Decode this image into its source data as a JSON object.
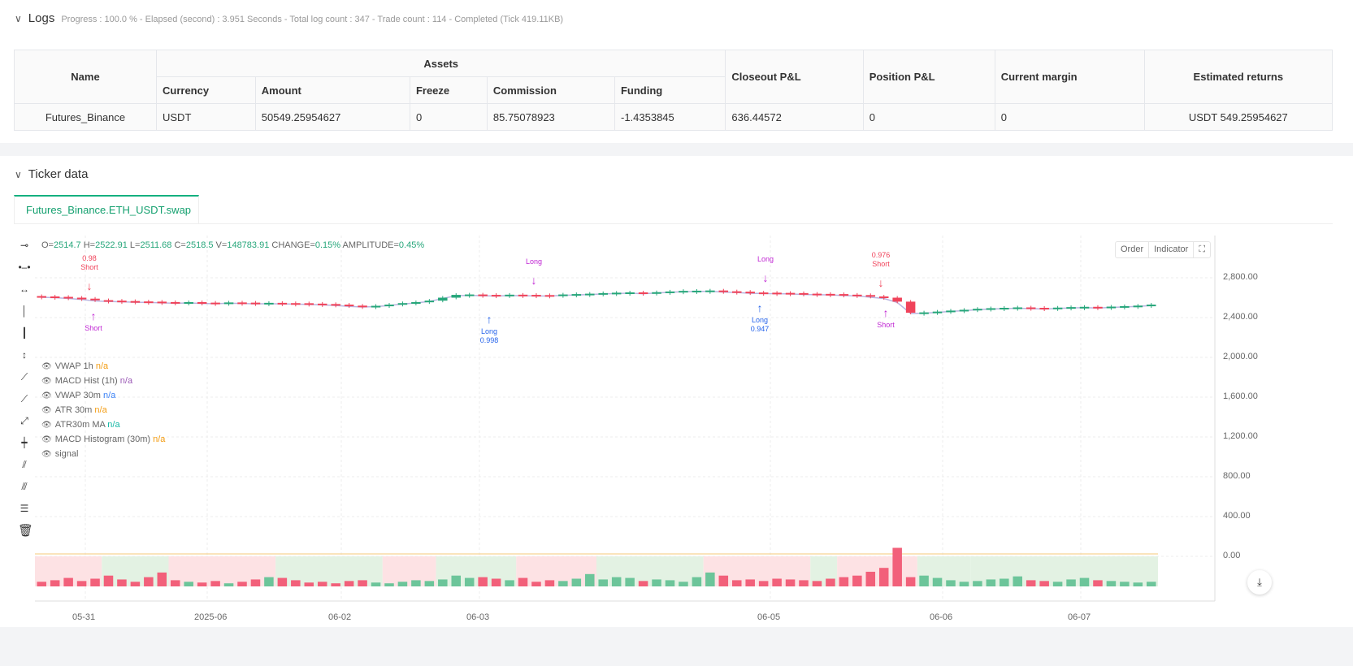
{
  "logs": {
    "title": "Logs",
    "summary": "Progress : 100.0 % - Elapsed (second) : 3.951 Seconds - Total log count : 347 - Trade count : 114 - Completed (Tick 419.11KB)"
  },
  "table": {
    "name_h": "Name",
    "assets_h": "Assets",
    "closeout_h": "Closeout P&L",
    "position_h": "Position P&L",
    "margin_h": "Current margin",
    "returns_h": "Estimated returns",
    "sub": [
      "Currency",
      "Amount",
      "Freeze",
      "Commission",
      "Funding"
    ],
    "row": [
      "Futures_Binance",
      "USDT",
      "50549.25954627",
      "0",
      "85.75078923",
      "-1.4353845",
      "636.44572",
      "0",
      "0",
      "USDT 549.25954627"
    ]
  },
  "ticker": {
    "title": "Ticker data",
    "tab": "Futures_Binance.ETH_USDT.swap"
  },
  "chart": {
    "ohlc": {
      "o_l": "O=",
      "o": "2514.7",
      "h_l": " H=",
      "h": "2522.91",
      "l_l": " L=",
      "l": "2511.68",
      "c_l": " C=",
      "c": "2518.5",
      "v_l": " V=",
      "v": "148783.91",
      "ch_l": " CHANGE=",
      "ch": "0.15%",
      "a_l": " AMPLITUDE=",
      "a": "0.45%"
    },
    "legend": [
      {
        "name": "VWAP 1h",
        "val": "n/a",
        "color": "#f39c12"
      },
      {
        "name": "MACD Hist (1h)",
        "val": "n/a",
        "color": "#9b59b6"
      },
      {
        "name": "VWAP 30m",
        "val": "n/a",
        "color": "#3b82f6"
      },
      {
        "name": "ATR 30m",
        "val": "n/a",
        "color": "#f39c12"
      },
      {
        "name": "ATR30m MA",
        "val": "n/a",
        "color": "#14b8a6"
      },
      {
        "name": "MACD Histogram (30m)",
        "val": "n/a",
        "color": "#f39c12"
      },
      {
        "name": "signal",
        "val": "",
        "color": "#666"
      }
    ],
    "buttons": {
      "order": "Order",
      "indicator": "Indicator"
    },
    "yticks": [
      "2,800.00",
      "2,400.00",
      "2,000.00",
      "1,600.00",
      "1,200.00",
      "800.00",
      "400.00",
      "0.00"
    ],
    "xticks": [
      "05-31",
      "2025-06",
      "06-02",
      "06-03",
      "06-05",
      "06-06",
      "06-07"
    ],
    "annotations": [
      {
        "text": "Short",
        "sub": "0.98",
        "color": "#f0435a"
      },
      {
        "text": "Short",
        "sub": "",
        "color": "#c026d3"
      },
      {
        "text": "Long",
        "sub": "0.998",
        "color": "#2563eb"
      },
      {
        "text": "Long",
        "sub": "",
        "color": "#c026d3"
      },
      {
        "text": "Long",
        "sub": "",
        "color": "#c026d3"
      },
      {
        "text": "Long",
        "sub": "0.947",
        "color": "#2563eb"
      },
      {
        "text": "Short",
        "sub": "0.976",
        "color": "#f0435a"
      },
      {
        "text": "Short",
        "sub": "",
        "color": "#c026d3"
      }
    ],
    "closes": [
      2612,
      2608,
      2600,
      2590,
      2575,
      2570,
      2566,
      2562,
      2560,
      2556,
      2552,
      2555,
      2550,
      2548,
      2552,
      2550,
      2546,
      2548,
      2545,
      2544,
      2540,
      2536,
      2530,
      2520,
      2514,
      2518,
      2530,
      2545,
      2555,
      2570,
      2600,
      2628,
      2632,
      2628,
      2625,
      2630,
      2628,
      2626,
      2624,
      2632,
      2636,
      2640,
      2646,
      2650,
      2653,
      2648,
      2655,
      2662,
      2668,
      2670,
      2672,
      2664,
      2660,
      2652,
      2650,
      2648,
      2646,
      2640,
      2638,
      2636,
      2630,
      2626,
      2612,
      2600,
      2560,
      2449,
      2452,
      2460,
      2470,
      2478,
      2488,
      2494,
      2498,
      2502,
      2498,
      2494,
      2500,
      2505,
      2508,
      2504,
      2510,
      2515,
      2520,
      2530
    ],
    "volumes": [
      30,
      40,
      55,
      35,
      50,
      70,
      45,
      30,
      60,
      90,
      40,
      30,
      25,
      35,
      20,
      30,
      45,
      60,
      55,
      40,
      25,
      30,
      20,
      35,
      40,
      25,
      20,
      30,
      40,
      35,
      45,
      70,
      55,
      60,
      50,
      40,
      55,
      30,
      40,
      35,
      50,
      80,
      45,
      60,
      55,
      35,
      45,
      40,
      30,
      60,
      90,
      70,
      40,
      45,
      35,
      50,
      45,
      40,
      35,
      50,
      60,
      70,
      95,
      120,
      250,
      60,
      70,
      55,
      40,
      30,
      35,
      45,
      50,
      65,
      40,
      35,
      30,
      45,
      55,
      40,
      35,
      30,
      25,
      30
    ],
    "bands": [
      [
        0,
        5,
        "r"
      ],
      [
        5,
        10,
        "g"
      ],
      [
        10,
        18,
        "r"
      ],
      [
        18,
        26,
        "g"
      ],
      [
        26,
        30,
        "r"
      ],
      [
        30,
        36,
        "g"
      ],
      [
        36,
        42,
        "r"
      ],
      [
        42,
        50,
        "g"
      ],
      [
        50,
        58,
        "r"
      ],
      [
        58,
        60,
        "g"
      ],
      [
        60,
        66,
        "r"
      ],
      [
        66,
        70,
        "g"
      ],
      [
        70,
        84,
        "g"
      ]
    ],
    "colors": {
      "up": "#26a67a",
      "down": "#f0435a",
      "band_up": "#e3f2e3",
      "band_down": "#fde2e4"
    },
    "price_range": [
      0,
      3100
    ]
  }
}
